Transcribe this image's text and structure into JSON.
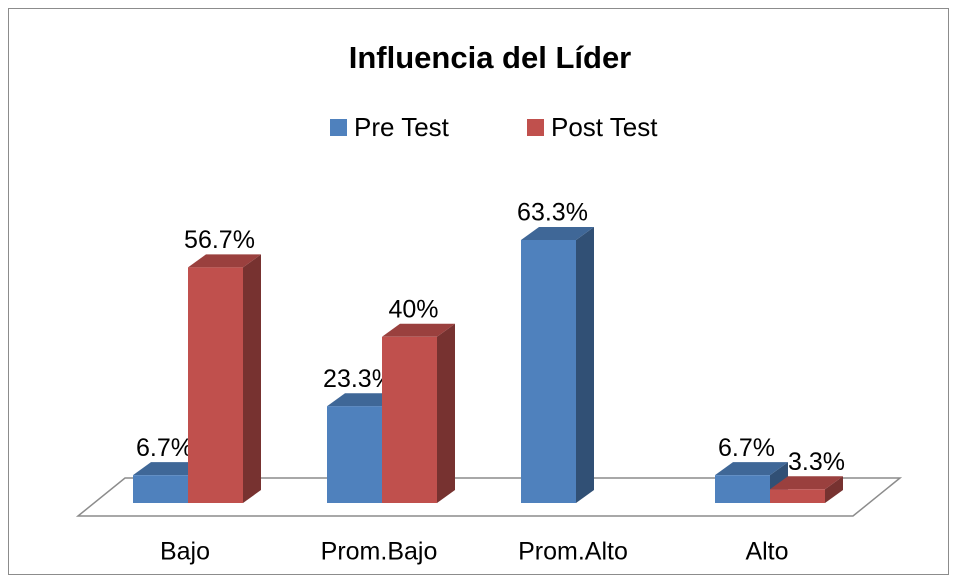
{
  "chart_data": {
    "type": "bar3d",
    "title": "Influencia del Líder",
    "categories": [
      "Bajo",
      "Prom.Bajo",
      "Prom.Alto",
      "Alto"
    ],
    "series": [
      {
        "name": "Pre Test",
        "color": "#4f81bd",
        "values": [
          6.7,
          23.3,
          63.3,
          6.7
        ],
        "value_labels": [
          "6.7%",
          "23.3%",
          "63.3%",
          "6.7%"
        ]
      },
      {
        "name": "Post Test",
        "color": "#c0504d",
        "values": [
          56.7,
          40,
          null,
          3.3
        ],
        "value_labels": [
          "56.7%",
          "40%",
          null,
          "3.3%"
        ]
      }
    ],
    "legend": "top"
  }
}
